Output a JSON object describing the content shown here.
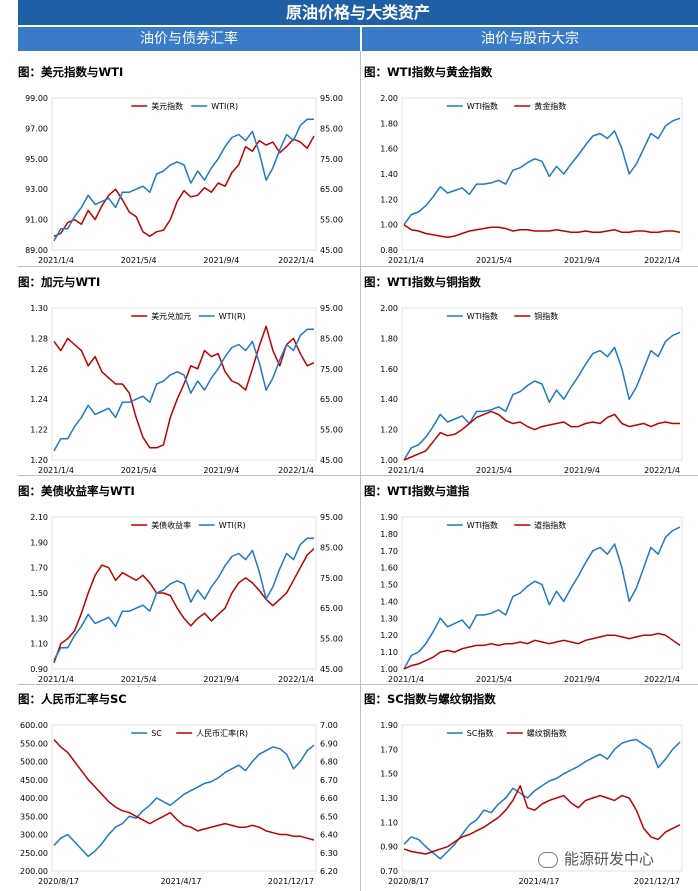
{
  "header": {
    "title": "原油价格与大类资产",
    "left_section": "油价与债券汇率",
    "right_section": "油价与股市大宗"
  },
  "watermark": "能源研发中心",
  "colors": {
    "red": "#c00000",
    "blue": "#1f78c8"
  },
  "chart_data": [
    {
      "type": "line",
      "title": "图：美元指数与WTI",
      "x_ticks": [
        "2021/1/4",
        "2021/5/4",
        "2021/9/4",
        "2022/1/4"
      ],
      "left_ticks": [
        "99.00",
        "97.00",
        "95.00",
        "93.00",
        "91.00",
        "89.00"
      ],
      "right_ticks": [
        "95.00",
        "85.00",
        "75.00",
        "65.00",
        "55.00",
        "45.00"
      ],
      "ylim_left": [
        89,
        99
      ],
      "ylim_right": [
        45,
        95
      ],
      "series": [
        {
          "name": "美元指数",
          "axis": "left",
          "color": "#c00000",
          "values": [
            89.9,
            90.1,
            90.8,
            91.0,
            90.7,
            91.6,
            91.0,
            91.9,
            92.6,
            93.0,
            92.3,
            91.5,
            91.2,
            90.2,
            89.9,
            90.2,
            90.3,
            91.0,
            92.2,
            92.9,
            92.5,
            92.6,
            93.1,
            92.8,
            93.4,
            93.2,
            94.1,
            94.6,
            95.8,
            95.5,
            96.2,
            95.9,
            96.1,
            95.4,
            95.8,
            96.3,
            96.1,
            95.7,
            96.5
          ]
        },
        {
          "name": "WTI(R)",
          "axis": "right",
          "color": "#1f78c8",
          "values": [
            48,
            52,
            52,
            56,
            59,
            63,
            60,
            61,
            62,
            59,
            64,
            64,
            65,
            66,
            64,
            70,
            71,
            73,
            74,
            73,
            67,
            71,
            68,
            72,
            75,
            79,
            82,
            83,
            81,
            84,
            77,
            68,
            72,
            78,
            83,
            81,
            86,
            88,
            88
          ]
        }
      ]
    },
    {
      "type": "line",
      "title": "图：WTI指数与黄金指数",
      "x_ticks": [
        "2021/1/4",
        "2021/5/4",
        "2021/9/4",
        "2022/1/4"
      ],
      "left_ticks": [
        "2.00",
        "1.80",
        "1.60",
        "1.40",
        "1.20",
        "1.00",
        "0.80"
      ],
      "ylim_left": [
        0.8,
        2.0
      ],
      "series": [
        {
          "name": "WTI指数",
          "axis": "left",
          "color": "#1f78c8",
          "values": [
            1.0,
            1.08,
            1.1,
            1.15,
            1.22,
            1.3,
            1.25,
            1.27,
            1.29,
            1.24,
            1.32,
            1.32,
            1.33,
            1.35,
            1.32,
            1.43,
            1.45,
            1.49,
            1.52,
            1.5,
            1.38,
            1.46,
            1.4,
            1.48,
            1.55,
            1.63,
            1.7,
            1.72,
            1.68,
            1.74,
            1.6,
            1.4,
            1.48,
            1.6,
            1.72,
            1.68,
            1.78,
            1.82,
            1.84
          ]
        },
        {
          "name": "黄金指数",
          "axis": "left",
          "color": "#c00000",
          "values": [
            1.0,
            0.96,
            0.95,
            0.93,
            0.92,
            0.91,
            0.9,
            0.91,
            0.93,
            0.95,
            0.96,
            0.97,
            0.98,
            0.98,
            0.97,
            0.95,
            0.96,
            0.96,
            0.95,
            0.95,
            0.95,
            0.96,
            0.95,
            0.94,
            0.94,
            0.95,
            0.94,
            0.94,
            0.95,
            0.96,
            0.94,
            0.94,
            0.95,
            0.95,
            0.94,
            0.94,
            0.95,
            0.95,
            0.94
          ]
        }
      ]
    },
    {
      "type": "line",
      "title": "图：加元与WTI",
      "x_ticks": [
        "2021/1/4",
        "2021/5/4",
        "2021/9/4",
        "2022/1/4"
      ],
      "left_ticks": [
        "1.30",
        "1.28",
        "1.26",
        "1.24",
        "1.22",
        "1.20"
      ],
      "right_ticks": [
        "95.00",
        "85.00",
        "75.00",
        "65.00",
        "55.00",
        "45.00"
      ],
      "ylim_left": [
        1.2,
        1.3
      ],
      "ylim_right": [
        45,
        95
      ],
      "series": [
        {
          "name": "美元兑加元",
          "axis": "left",
          "color": "#c00000",
          "values": [
            1.278,
            1.272,
            1.28,
            1.276,
            1.272,
            1.262,
            1.268,
            1.258,
            1.254,
            1.25,
            1.25,
            1.244,
            1.228,
            1.215,
            1.208,
            1.208,
            1.21,
            1.228,
            1.24,
            1.25,
            1.262,
            1.26,
            1.272,
            1.268,
            1.27,
            1.258,
            1.252,
            1.25,
            1.246,
            1.26,
            1.275,
            1.288,
            1.272,
            1.262,
            1.276,
            1.28,
            1.27,
            1.262,
            1.264
          ]
        },
        {
          "name": "WTI(R)",
          "axis": "right",
          "color": "#1f78c8",
          "values": [
            48,
            52,
            52,
            56,
            59,
            63,
            60,
            61,
            62,
            59,
            64,
            64,
            65,
            66,
            64,
            70,
            71,
            73,
            74,
            73,
            67,
            71,
            68,
            72,
            75,
            79,
            82,
            83,
            81,
            84,
            77,
            68,
            72,
            78,
            83,
            81,
            86,
            88,
            88
          ]
        }
      ]
    },
    {
      "type": "line",
      "title": "图：WTI指数与铜指数",
      "x_ticks": [
        "2021/1/4",
        "2021/5/4",
        "2021/9/4",
        "2022/1/4"
      ],
      "left_ticks": [
        "2.00",
        "1.80",
        "1.60",
        "1.40",
        "1.20",
        "1.00"
      ],
      "ylim_left": [
        1.0,
        2.0
      ],
      "series": [
        {
          "name": "WTI指数",
          "axis": "left",
          "color": "#1f78c8",
          "values": [
            1.0,
            1.08,
            1.1,
            1.15,
            1.22,
            1.3,
            1.25,
            1.27,
            1.29,
            1.24,
            1.32,
            1.32,
            1.33,
            1.35,
            1.32,
            1.43,
            1.45,
            1.49,
            1.52,
            1.5,
            1.38,
            1.46,
            1.4,
            1.48,
            1.55,
            1.63,
            1.7,
            1.72,
            1.68,
            1.74,
            1.6,
            1.4,
            1.48,
            1.6,
            1.72,
            1.68,
            1.78,
            1.82,
            1.84
          ]
        },
        {
          "name": "铜指数",
          "axis": "left",
          "color": "#c00000",
          "values": [
            1.0,
            1.02,
            1.04,
            1.06,
            1.12,
            1.18,
            1.16,
            1.17,
            1.2,
            1.24,
            1.28,
            1.3,
            1.32,
            1.3,
            1.26,
            1.24,
            1.25,
            1.22,
            1.2,
            1.22,
            1.23,
            1.24,
            1.25,
            1.22,
            1.22,
            1.24,
            1.25,
            1.24,
            1.28,
            1.3,
            1.24,
            1.22,
            1.23,
            1.24,
            1.22,
            1.24,
            1.25,
            1.24,
            1.24
          ]
        }
      ]
    },
    {
      "type": "line",
      "title": "图：美债收益率与WTI",
      "x_ticks": [
        "2021/1/4",
        "2021/5/4",
        "2021/9/4",
        "2022/1/4"
      ],
      "left_ticks": [
        "2.10",
        "1.90",
        "1.70",
        "1.50",
        "1.30",
        "1.10",
        "0.90"
      ],
      "right_ticks": [
        "95.00",
        "85.00",
        "75.00",
        "65.00",
        "55.00",
        "45.00"
      ],
      "ylim_left": [
        0.9,
        2.1
      ],
      "ylim_right": [
        45,
        95
      ],
      "series": [
        {
          "name": "美债收益率",
          "axis": "left",
          "color": "#c00000",
          "values": [
            0.95,
            1.1,
            1.14,
            1.2,
            1.34,
            1.5,
            1.64,
            1.72,
            1.7,
            1.6,
            1.66,
            1.63,
            1.6,
            1.64,
            1.58,
            1.5,
            1.5,
            1.48,
            1.38,
            1.3,
            1.24,
            1.3,
            1.34,
            1.28,
            1.33,
            1.38,
            1.5,
            1.58,
            1.62,
            1.58,
            1.52,
            1.45,
            1.4,
            1.45,
            1.5,
            1.6,
            1.7,
            1.8,
            1.85
          ]
        },
        {
          "name": "WTI(R)",
          "axis": "right",
          "color": "#1f78c8",
          "values": [
            48,
            52,
            52,
            56,
            59,
            63,
            60,
            61,
            62,
            59,
            64,
            64,
            65,
            66,
            64,
            70,
            71,
            73,
            74,
            73,
            67,
            71,
            68,
            72,
            75,
            79,
            82,
            83,
            81,
            84,
            77,
            68,
            72,
            78,
            83,
            81,
            86,
            88,
            88
          ]
        }
      ]
    },
    {
      "type": "line",
      "title": "图：WTI指数与道指",
      "x_ticks": [
        "2021/1/4",
        "2021/5/4",
        "2021/9/4",
        "2022/1/4"
      ],
      "left_ticks": [
        "1.90",
        "1.80",
        "1.70",
        "1.60",
        "1.50",
        "1.40",
        "1.30",
        "1.20",
        "1.10",
        "1.00"
      ],
      "ylim_left": [
        1.0,
        1.9
      ],
      "series": [
        {
          "name": "WTI指数",
          "axis": "left",
          "color": "#1f78c8",
          "values": [
            1.0,
            1.08,
            1.1,
            1.15,
            1.22,
            1.3,
            1.25,
            1.27,
            1.29,
            1.24,
            1.32,
            1.32,
            1.33,
            1.35,
            1.32,
            1.43,
            1.45,
            1.49,
            1.52,
            1.5,
            1.38,
            1.46,
            1.4,
            1.48,
            1.55,
            1.63,
            1.7,
            1.72,
            1.68,
            1.74,
            1.6,
            1.4,
            1.48,
            1.6,
            1.72,
            1.68,
            1.78,
            1.82,
            1.84
          ]
        },
        {
          "name": "道指指数",
          "axis": "left",
          "color": "#c00000",
          "values": [
            1.0,
            1.02,
            1.03,
            1.05,
            1.07,
            1.1,
            1.11,
            1.1,
            1.12,
            1.13,
            1.14,
            1.14,
            1.15,
            1.14,
            1.15,
            1.15,
            1.16,
            1.15,
            1.17,
            1.16,
            1.15,
            1.16,
            1.17,
            1.16,
            1.15,
            1.17,
            1.18,
            1.19,
            1.2,
            1.2,
            1.19,
            1.18,
            1.19,
            1.2,
            1.2,
            1.21,
            1.2,
            1.17,
            1.14
          ]
        }
      ]
    },
    {
      "type": "line",
      "title": "图：人民币汇率与SC",
      "x_ticks": [
        "2020/8/17",
        "2021/4/17",
        "2021/12/17"
      ],
      "left_ticks": [
        "600.00",
        "550.00",
        "500.00",
        "450.00",
        "400.00",
        "350.00",
        "300.00",
        "250.00",
        "200.00"
      ],
      "right_ticks": [
        "7.00",
        "6.90",
        "6.80",
        "6.70",
        "6.60",
        "6.50",
        "6.40",
        "6.30",
        "6.20"
      ],
      "ylim_left": [
        200,
        600
      ],
      "ylim_right": [
        6.2,
        7.0
      ],
      "series": [
        {
          "name": "SC",
          "axis": "left",
          "color": "#1f78c8",
          "values": [
            270,
            290,
            300,
            280,
            260,
            240,
            255,
            275,
            300,
            320,
            330,
            350,
            345,
            365,
            380,
            400,
            390,
            380,
            395,
            410,
            420,
            430,
            440,
            445,
            455,
            470,
            480,
            490,
            475,
            500,
            520,
            530,
            540,
            535,
            520,
            480,
            500,
            530,
            545
          ]
        },
        {
          "name": "人民币汇率(R)",
          "axis": "right",
          "color": "#c00000",
          "values": [
            6.92,
            6.88,
            6.85,
            6.8,
            6.75,
            6.7,
            6.66,
            6.62,
            6.58,
            6.55,
            6.53,
            6.52,
            6.5,
            6.48,
            6.46,
            6.48,
            6.5,
            6.52,
            6.48,
            6.45,
            6.44,
            6.42,
            6.43,
            6.44,
            6.45,
            6.46,
            6.45,
            6.44,
            6.44,
            6.45,
            6.44,
            6.42,
            6.41,
            6.4,
            6.4,
            6.39,
            6.39,
            6.38,
            6.37
          ]
        }
      ]
    },
    {
      "type": "line",
      "title": "图：SC指数与螺纹钢指数",
      "x_ticks": [
        "2020/8/17",
        "2021/4/17",
        "2021/12/17"
      ],
      "left_ticks": [
        "1.90",
        "1.70",
        "1.50",
        "1.30",
        "1.10",
        "0.90",
        "0.70"
      ],
      "ylim_left": [
        0.7,
        1.9
      ],
      "series": [
        {
          "name": "SC指数",
          "axis": "left",
          "color": "#1f78c8",
          "values": [
            0.92,
            0.98,
            0.96,
            0.9,
            0.85,
            0.8,
            0.86,
            0.92,
            1.0,
            1.08,
            1.12,
            1.2,
            1.18,
            1.25,
            1.3,
            1.38,
            1.34,
            1.3,
            1.36,
            1.4,
            1.44,
            1.46,
            1.5,
            1.53,
            1.56,
            1.6,
            1.63,
            1.66,
            1.62,
            1.7,
            1.75,
            1.77,
            1.78,
            1.74,
            1.7,
            1.55,
            1.62,
            1.7,
            1.76
          ]
        },
        {
          "name": "螺纹钢指数",
          "axis": "left",
          "color": "#c00000",
          "values": [
            0.88,
            0.86,
            0.85,
            0.84,
            0.86,
            0.88,
            0.9,
            0.94,
            0.98,
            1.0,
            1.03,
            1.06,
            1.1,
            1.14,
            1.2,
            1.28,
            1.4,
            1.22,
            1.2,
            1.25,
            1.28,
            1.3,
            1.32,
            1.26,
            1.22,
            1.28,
            1.3,
            1.32,
            1.3,
            1.28,
            1.32,
            1.3,
            1.2,
            1.05,
            0.98,
            0.96,
            1.02,
            1.05,
            1.08
          ]
        }
      ]
    }
  ]
}
